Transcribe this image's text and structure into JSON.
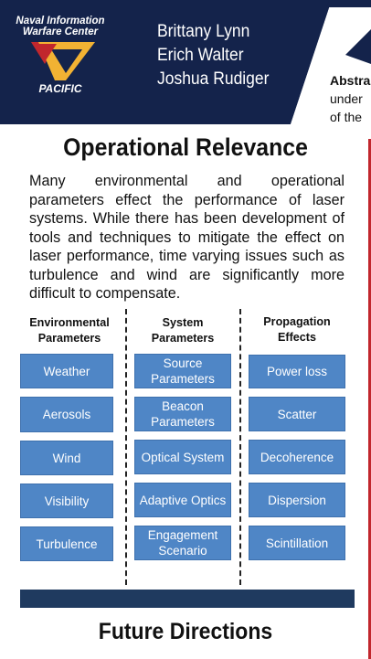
{
  "header": {
    "logo_line1": "Naval Information",
    "logo_line2": "Warfare Center",
    "logo_pacific": "PACIFIC",
    "authors": [
      "Brittany Lynn",
      "Erich Walter",
      "Joshua Rudiger"
    ],
    "abstract_label": "Abstra",
    "abstract_line2": "under",
    "abstract_line3": "of the",
    "colors": {
      "navy": "#14234b",
      "logo_gold": "#f2b233",
      "logo_red": "#c1272d"
    }
  },
  "relevance": {
    "title": "Operational Relevance",
    "body": "Many environmental and operational parameters effect the performance of laser systems. While there has been development of tools and techniques to mitigate the effect on laser performance, time varying issues such as turbulence and wind are significantly more difficult to compensate."
  },
  "columns": [
    {
      "header": "Environmental Parameters",
      "items": [
        "Weather",
        "Aerosols",
        "Wind",
        "Visibility",
        "Turbulence"
      ]
    },
    {
      "header": "System Parameters",
      "items": [
        "Source Parameters",
        "Beacon Parameters",
        "Optical System",
        "Adaptive Optics",
        "Engagement Scenario"
      ]
    },
    {
      "header": "Propagation Effects",
      "items": [
        "Power loss",
        "Scatter",
        "Decoherence",
        "Dispersion",
        "Scintillation"
      ]
    }
  ],
  "future": {
    "title": "Future Directions"
  }
}
